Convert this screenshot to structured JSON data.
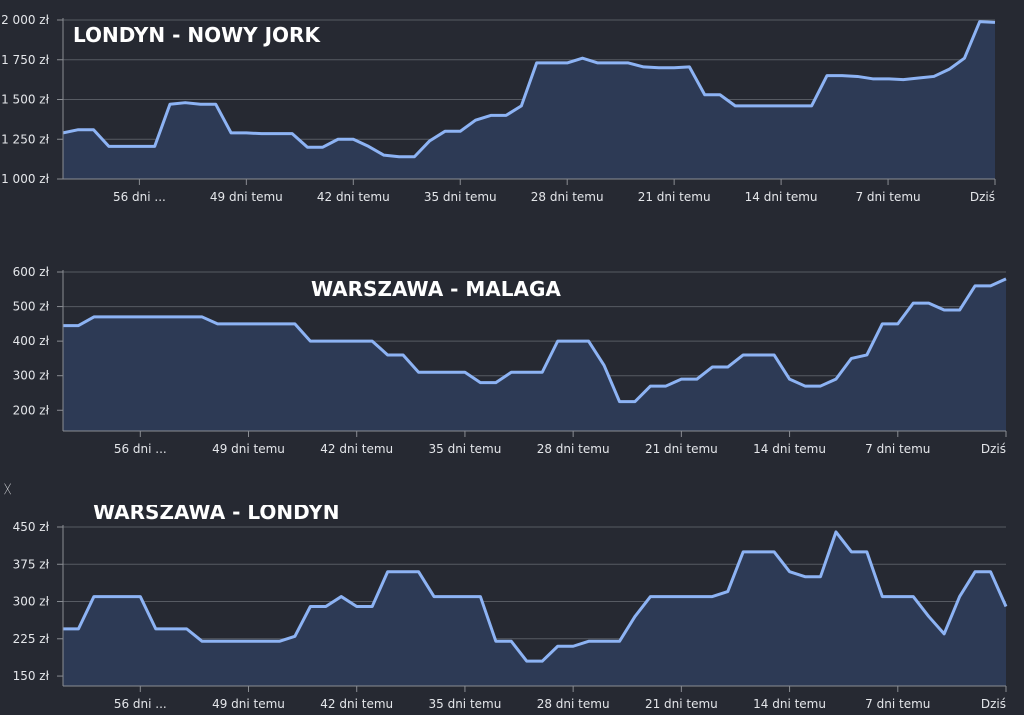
{
  "colors": {
    "background": "#262932",
    "line": "#8db3f4",
    "area": "#2d3a55",
    "grid": "#575b63",
    "axis": "#8a8d93",
    "text": "#e4e6ea",
    "title": "#ffffff"
  },
  "stray_mark": "ᚷ",
  "chart_data": [
    {
      "type": "area",
      "title": "LONDYN - NOWY JORK",
      "xlabel": "",
      "ylabel": "",
      "ylim": [
        1000,
        2000
      ],
      "yticks": [
        1000,
        1250,
        1500,
        1750,
        2000
      ],
      "ytick_labels": [
        "1 000 zł",
        "1 250 zł",
        "1 500 zł",
        "1 750 zł",
        "2 000 zł"
      ],
      "xticks": [
        -56,
        -49,
        -42,
        -35,
        -28,
        -21,
        -14,
        -7,
        0
      ],
      "xtick_labels": [
        "56 dni ...",
        "49 dni temu",
        "42 dni temu",
        "35 dni temu",
        "28 dni temu",
        "21 dni temu",
        "14 dni temu",
        "7 dni temu",
        "Dziś"
      ],
      "grid": true,
      "x": [
        -61,
        -60,
        -59,
        -58,
        -57,
        -56,
        -55,
        -54,
        -53,
        -52,
        -51,
        -50,
        -49,
        -48,
        -47,
        -46,
        -45,
        -44,
        -43,
        -42,
        -41,
        -40,
        -39,
        -38,
        -37,
        -36,
        -35,
        -34,
        -33,
        -32,
        -31,
        -30,
        -29,
        -28,
        -27,
        -26,
        -25,
        -24,
        -23,
        -22,
        -21,
        -20,
        -19,
        -18,
        -17,
        -16,
        -15,
        -14,
        -13,
        -12,
        -11,
        -10,
        -9,
        -8,
        -7,
        -6,
        -5,
        -4,
        -3,
        -2,
        -1,
        0
      ],
      "values": [
        1290,
        1310,
        1310,
        1205,
        1205,
        1205,
        1205,
        1470,
        1480,
        1470,
        1470,
        1290,
        1290,
        1285,
        1285,
        1285,
        1200,
        1200,
        1250,
        1250,
        1205,
        1150,
        1140,
        1140,
        1240,
        1300,
        1300,
        1370,
        1400,
        1400,
        1460,
        1730,
        1730,
        1730,
        1760,
        1730,
        1730,
        1730,
        1705,
        1700,
        1700,
        1705,
        1530,
        1530,
        1460,
        1460,
        1460,
        1460,
        1460,
        1460,
        1650,
        1650,
        1645,
        1630,
        1630,
        1625,
        1635,
        1645,
        1690,
        1760,
        1990,
        1985
      ]
    },
    {
      "type": "area",
      "title": "WARSZAWA - MALAGA",
      "xlabel": "",
      "ylabel": "",
      "ylim": [
        140,
        600
      ],
      "yticks": [
        200,
        300,
        400,
        500,
        600
      ],
      "ytick_labels": [
        "200 zł",
        "300 zł",
        "400 zł",
        "500 zł",
        "600 zł"
      ],
      "xticks": [
        -56,
        -49,
        -42,
        -35,
        -28,
        -21,
        -14,
        -7,
        0
      ],
      "xtick_labels": [
        "56 dni ...",
        "49 dni temu",
        "42 dni temu",
        "35 dni temu",
        "28 dni temu",
        "21 dni temu",
        "14 dni temu",
        "7 dni temu",
        "Dziś"
      ],
      "grid": true,
      "x": [
        -61,
        -60,
        -59,
        -58,
        -57,
        -56,
        -55,
        -54,
        -53,
        -52,
        -51,
        -50,
        -49,
        -48,
        -47,
        -46,
        -45,
        -44,
        -43,
        -42,
        -41,
        -40,
        -39,
        -38,
        -37,
        -36,
        -35,
        -34,
        -33,
        -32,
        -31,
        -30,
        -29,
        -28,
        -27,
        -26,
        -25,
        -24,
        -23,
        -22,
        -21,
        -20,
        -19,
        -18,
        -17,
        -16,
        -15,
        -14,
        -13,
        -12,
        -11,
        -10,
        -9,
        -8,
        -7,
        -6,
        -5,
        -4,
        -3,
        -2,
        -1,
        0
      ],
      "values": [
        445,
        445,
        470,
        470,
        470,
        470,
        470,
        470,
        470,
        470,
        450,
        450,
        450,
        450,
        450,
        450,
        400,
        400,
        400,
        400,
        400,
        360,
        360,
        310,
        310,
        310,
        310,
        280,
        280,
        310,
        310,
        310,
        400,
        400,
        400,
        330,
        225,
        225,
        270,
        270,
        290,
        290,
        325,
        325,
        360,
        360,
        360,
        290,
        270,
        270,
        290,
        350,
        360,
        450,
        450,
        510,
        510,
        490,
        490,
        560,
        560,
        580
      ]
    },
    {
      "type": "area",
      "title": "WARSZAWA - LONDYN",
      "xlabel": "",
      "ylabel": "",
      "ylim": [
        130,
        450
      ],
      "yticks": [
        150,
        225,
        300,
        375,
        450
      ],
      "ytick_labels": [
        "150 zł",
        "225 zł",
        "300 zł",
        "375 zł",
        "450 zł"
      ],
      "xticks": [
        -56,
        -49,
        -42,
        -35,
        -28,
        -21,
        -14,
        -7,
        0
      ],
      "xtick_labels": [
        "56 dni ...",
        "49 dni temu",
        "42 dni temu",
        "35 dni temu",
        "28 dni temu",
        "21 dni temu",
        "14 dni temu",
        "7 dni temu",
        "Dziś"
      ],
      "grid": true,
      "x": [
        -61,
        -60,
        -59,
        -58,
        -57,
        -56,
        -55,
        -54,
        -53,
        -52,
        -51,
        -50,
        -49,
        -48,
        -47,
        -46,
        -45,
        -44,
        -43,
        -42,
        -41,
        -40,
        -39,
        -38,
        -37,
        -36,
        -35,
        -34,
        -33,
        -32,
        -31,
        -30,
        -29,
        -28,
        -27,
        -26,
        -25,
        -24,
        -23,
        -22,
        -21,
        -20,
        -19,
        -18,
        -17,
        -16,
        -15,
        -14,
        -13,
        -12,
        -11,
        -10,
        -9,
        -8,
        -7,
        -6,
        -5,
        -4,
        -3,
        -2,
        -1,
        0
      ],
      "values": [
        245,
        245,
        310,
        310,
        310,
        310,
        245,
        245,
        245,
        220,
        220,
        220,
        220,
        220,
        220,
        230,
        290,
        290,
        310,
        290,
        290,
        360,
        360,
        360,
        310,
        310,
        310,
        310,
        220,
        220,
        180,
        180,
        210,
        210,
        220,
        220,
        220,
        270,
        310,
        310,
        310,
        310,
        310,
        320,
        400,
        400,
        400,
        360,
        350,
        350,
        440,
        400,
        400,
        310,
        310,
        310,
        270,
        235,
        310,
        360,
        360,
        290
      ]
    }
  ]
}
